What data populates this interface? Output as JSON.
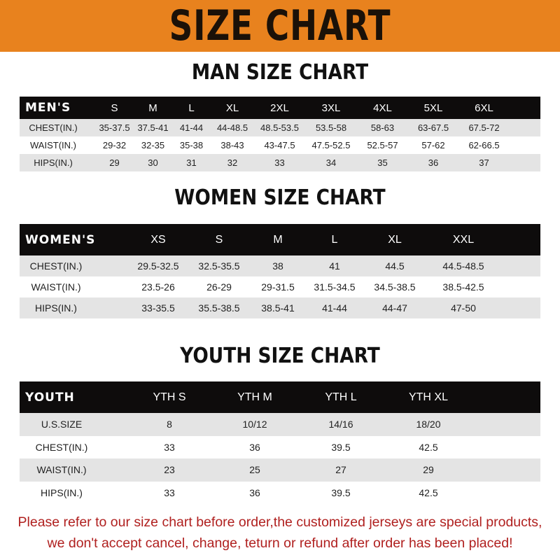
{
  "banner": {
    "title": "SIZE CHART",
    "background": "#e8821e"
  },
  "men": {
    "title": "MAN SIZE CHART",
    "header_label": "MEN'S",
    "sizes": [
      "S",
      "M",
      "L",
      "XL",
      "2XL",
      "3XL",
      "4XL",
      "5XL",
      "6XL"
    ],
    "rows": [
      {
        "label": "CHEST(IN.)",
        "values": [
          "35-37.5",
          "37.5-41",
          "41-44",
          "44-48.5",
          "48.5-53.5",
          "53.5-58",
          "58-63",
          "63-67.5",
          "67.5-72"
        ]
      },
      {
        "label": "WAIST(IN.)",
        "values": [
          "29-32",
          "32-35",
          "35-38",
          "38-43",
          "43-47.5",
          "47.5-52.5",
          "52.5-57",
          "57-62",
          "62-66.5"
        ]
      },
      {
        "label": "HIPS(IN.)",
        "values": [
          "29",
          "30",
          "31",
          "32",
          "33",
          "34",
          "35",
          "36",
          "37"
        ]
      }
    ]
  },
  "women": {
    "title": "WOMEN SIZE CHART",
    "header_label": "WOMEN'S",
    "sizes": [
      "XS",
      "S",
      "M",
      "L",
      "XL",
      "XXL"
    ],
    "rows": [
      {
        "label": "CHEST(IN.)",
        "values": [
          "29.5-32.5",
          "32.5-35.5",
          "38",
          "41",
          "44.5",
          "44.5-48.5"
        ]
      },
      {
        "label": "WAIST(IN.)",
        "values": [
          "23.5-26",
          "26-29",
          "29-31.5",
          "31.5-34.5",
          "34.5-38.5",
          "38.5-42.5"
        ]
      },
      {
        "label": "HIPS(IN.)",
        "values": [
          "33-35.5",
          "35.5-38.5",
          "38.5-41",
          "41-44",
          "44-47",
          "47-50"
        ]
      }
    ]
  },
  "youth": {
    "title": "YOUTH SIZE CHART",
    "header_label": "YOUTH",
    "sizes": [
      "YTH S",
      "YTH M",
      "YTH L",
      "YTH XL"
    ],
    "rows": [
      {
        "label": "U.S.SIZE",
        "values": [
          "8",
          "10/12",
          "14/16",
          "18/20"
        ]
      },
      {
        "label": "CHEST(IN.)",
        "values": [
          "33",
          "36",
          "39.5",
          "42.5"
        ]
      },
      {
        "label": "WAIST(IN.)",
        "values": [
          "23",
          "25",
          "27",
          "29"
        ]
      },
      {
        "label": "HIPS(IN.)",
        "values": [
          "33",
          "36",
          "39.5",
          "42.5"
        ]
      }
    ]
  },
  "notice": {
    "line1": "Please refer to our size chart before order,the customized jerseys are special products,",
    "line2": "we don't accept cancel, change, teturn or refund after order has been placed!",
    "color": "#b0201f"
  }
}
